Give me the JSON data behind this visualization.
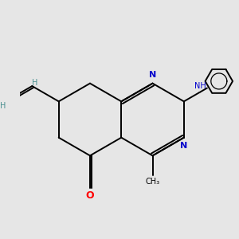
{
  "bg_color": "#e6e6e6",
  "bond_color": "#000000",
  "n_color": "#0000cc",
  "o_color": "#ff0000",
  "h_color": "#4a9090",
  "lw": 1.4,
  "figsize": [
    3.0,
    3.0
  ],
  "dpi": 100,
  "xlim": [
    -2.8,
    3.2
  ],
  "ylim": [
    -2.5,
    2.5
  ]
}
